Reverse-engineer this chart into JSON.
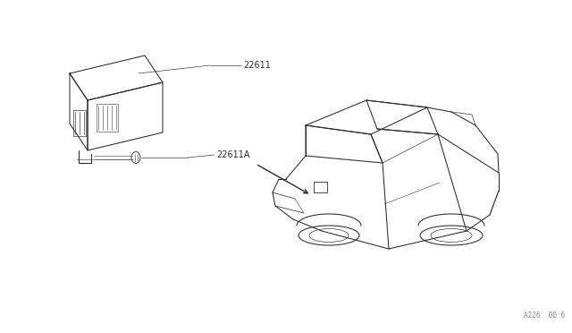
{
  "bg_color": "#ffffff",
  "line_color": "#2a2a2a",
  "fig_width": 6.4,
  "fig_height": 3.72,
  "dpi": 100,
  "part_label_1": "22611",
  "part_label_2": "22611A",
  "watermark": "A226  00 6",
  "label_fontsize": 7.0,
  "watermark_fontsize": 5.5
}
